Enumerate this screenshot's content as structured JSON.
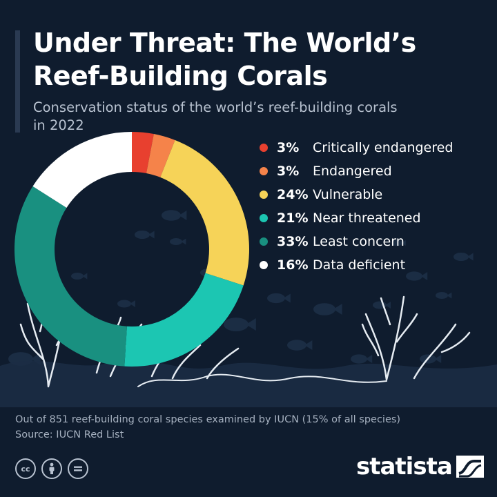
{
  "header": {
    "title_line1": "Under Threat: The World’s",
    "title_line2": "Reef-Building Corals",
    "subtitle_line1": "Conservation status of the world’s reef-building corals",
    "subtitle_line2": "in 2022"
  },
  "chart_data": {
    "type": "pie",
    "subtype": "donut",
    "unit": "%",
    "legend_placement": "right",
    "categories": [
      "Critically endangered",
      "Endangered",
      "Vulnerable",
      "Near threatened",
      "Least concern",
      "Data deficient"
    ],
    "values": [
      3,
      3,
      24,
      21,
      33,
      16
    ],
    "value_labels": [
      "3%",
      "3%",
      "24%",
      "21%",
      "33%",
      "16%"
    ],
    "colors": [
      "#e8402f",
      "#f5834a",
      "#f6d358",
      "#1cc6b2",
      "#199080",
      "#ffffff"
    ]
  },
  "footer": {
    "note": "Out of 851 reef-building coral species examined by IUCN (15% of all species)",
    "source": "Source: IUCN Red List",
    "license_icons": [
      "cc-icon",
      "attribution-icon",
      "no-derivatives-icon"
    ],
    "cc_text": "cc",
    "brand": "statista",
    "brand_icon": "statista-logo-icon"
  },
  "theme": {
    "background": "#0f1c2e",
    "silhouette": "#1b2d44",
    "line_art": "#e6ecf2"
  }
}
